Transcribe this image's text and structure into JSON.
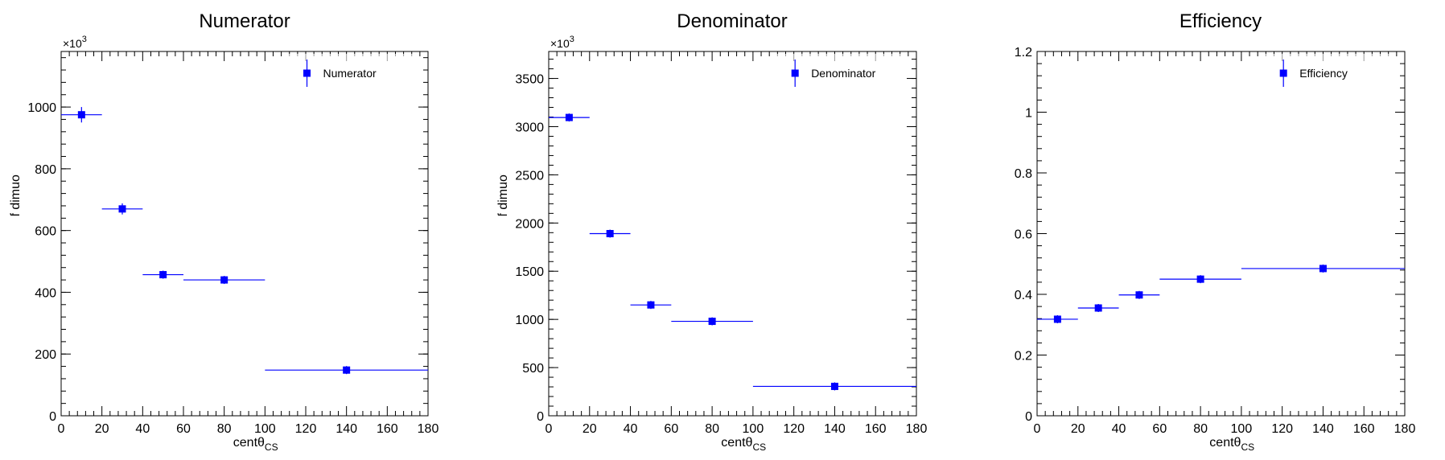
{
  "chart_data": [
    {
      "type": "scatter",
      "title": "Numerator",
      "xlabel": "centθ",
      "xlabel_sub": "CS",
      "ylabel": "# of dimuon",
      "exponent_label": "×10",
      "exponent_sup": "3",
      "xlim": [
        0,
        180
      ],
      "ylim": [
        0,
        1180
      ],
      "x_ticks": [
        0,
        20,
        40,
        60,
        80,
        100,
        120,
        140,
        160,
        180
      ],
      "y_ticks": [
        0,
        200,
        400,
        600,
        800,
        1000
      ],
      "y_tick_labels": [
        "0",
        "200",
        "400",
        "600",
        "800",
        "1000"
      ],
      "legend": {
        "label": "Numerator",
        "position": "top-right"
      },
      "color": "#0000ff",
      "series": [
        {
          "name": "Numerator",
          "points": [
            {
              "x": 10,
              "xlow": 0,
              "xhigh": 20,
              "y": 975,
              "yerr": 25
            },
            {
              "x": 30,
              "xlow": 20,
              "xhigh": 40,
              "y": 670,
              "yerr": 18
            },
            {
              "x": 50,
              "xlow": 40,
              "xhigh": 60,
              "y": 457,
              "yerr": 8
            },
            {
              "x": 80,
              "xlow": 60,
              "xhigh": 100,
              "y": 440,
              "yerr": 7
            },
            {
              "x": 140,
              "xlow": 100,
              "xhigh": 180,
              "y": 148,
              "yerr": 4
            }
          ]
        }
      ]
    },
    {
      "type": "scatter",
      "title": "Denominator",
      "xlabel": "centθ",
      "xlabel_sub": "CS",
      "ylabel": "# of dimuon",
      "exponent_label": "×10",
      "exponent_sup": "3",
      "xlim": [
        0,
        180
      ],
      "ylim": [
        0,
        3780
      ],
      "x_ticks": [
        0,
        20,
        40,
        60,
        80,
        100,
        120,
        140,
        160,
        180
      ],
      "y_ticks": [
        0,
        500,
        1000,
        1500,
        2000,
        2500,
        3000,
        3500
      ],
      "y_tick_labels": [
        "0",
        "500",
        "1000",
        "1500",
        "2000",
        "2500",
        "3000",
        "3500"
      ],
      "legend": {
        "label": "Denominator",
        "position": "top-right"
      },
      "color": "#0000ff",
      "series": [
        {
          "name": "Denominator",
          "points": [
            {
              "x": 10,
              "xlow": 0,
              "xhigh": 20,
              "y": 3095,
              "yerr": 25
            },
            {
              "x": 30,
              "xlow": 20,
              "xhigh": 40,
              "y": 1890,
              "yerr": 15
            },
            {
              "x": 50,
              "xlow": 40,
              "xhigh": 60,
              "y": 1150,
              "yerr": 10
            },
            {
              "x": 80,
              "xlow": 60,
              "xhigh": 100,
              "y": 980,
              "yerr": 8
            },
            {
              "x": 140,
              "xlow": 100,
              "xhigh": 180,
              "y": 305,
              "yerr": 5
            }
          ]
        }
      ]
    },
    {
      "type": "scatter",
      "title": "Efficiency",
      "xlabel": "centθ",
      "xlabel_sub": "CS",
      "ylabel": "",
      "exponent_label": "",
      "exponent_sup": "",
      "xlim": [
        0,
        180
      ],
      "ylim": [
        0,
        1.2
      ],
      "x_ticks": [
        0,
        20,
        40,
        60,
        80,
        100,
        120,
        140,
        160,
        180
      ],
      "y_ticks": [
        0,
        0.2,
        0.4,
        0.6,
        0.8,
        1.0,
        1.2
      ],
      "y_tick_labels": [
        "0",
        "0.2",
        "0.4",
        "0.6",
        "0.8",
        "1",
        "1.2"
      ],
      "legend": {
        "label": "Efficiency",
        "position": "top-right"
      },
      "color": "#0000ff",
      "series": [
        {
          "name": "Efficiency",
          "points": [
            {
              "x": 10,
              "xlow": 0,
              "xhigh": 20,
              "y": 0.318,
              "yerr": 0.006
            },
            {
              "x": 30,
              "xlow": 20,
              "xhigh": 40,
              "y": 0.355,
              "yerr": 0.006
            },
            {
              "x": 50,
              "xlow": 40,
              "xhigh": 60,
              "y": 0.398,
              "yerr": 0.006
            },
            {
              "x": 80,
              "xlow": 60,
              "xhigh": 100,
              "y": 0.45,
              "yerr": 0.006
            },
            {
              "x": 140,
              "xlow": 100,
              "xhigh": 180,
              "y": 0.485,
              "yerr": 0.006
            }
          ]
        }
      ]
    }
  ]
}
